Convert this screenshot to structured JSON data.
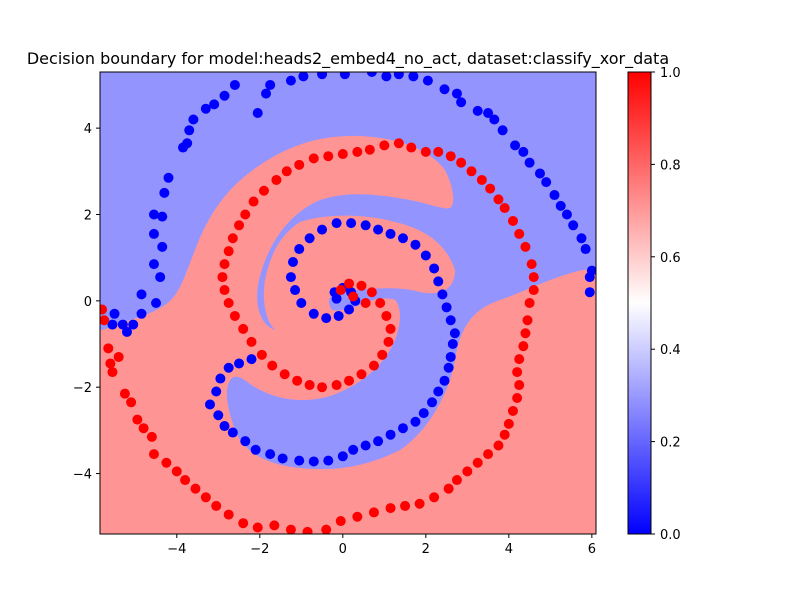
{
  "chart_data": {
    "type": "scatter",
    "title": "Decision boundary for model:heads2_embed4_no_act, dataset:classify_xor_data",
    "xlabel": "",
    "ylabel": "",
    "xlim": [
      -5.85,
      6.1
    ],
    "ylim": [
      -5.4,
      5.3
    ],
    "x_ticks": [
      -4,
      -2,
      0,
      2,
      4,
      6
    ],
    "y_ticks": [
      -4,
      -2,
      0,
      2,
      4
    ],
    "x_tick_labels": [
      "−4",
      "−2",
      "0",
      "2",
      "4",
      "6"
    ],
    "y_tick_labels": [
      "−4",
      "−2",
      "0",
      "2",
      "4"
    ],
    "colorbar": {
      "min": 0.0,
      "max": 1.0,
      "ticks": [
        0.0,
        0.2,
        0.4,
        0.6,
        0.8,
        1.0
      ],
      "tick_labels": [
        "0.0",
        "0.2",
        "0.4",
        "0.6",
        "0.8",
        "1.0"
      ],
      "colormap": "bwr"
    },
    "region_colors": {
      "class0": "#9494ff",
      "class1": "#ff9494"
    },
    "series": [
      {
        "color": "#0000ff",
        "points": [
          [
            -5.55,
            -0.55
          ],
          [
            -5.5,
            -0.3
          ],
          [
            -5.3,
            -0.55
          ],
          [
            -5.2,
            -0.72
          ],
          [
            -5.05,
            -0.55
          ],
          [
            -4.85,
            -0.3
          ],
          [
            -4.5,
            -0.05
          ],
          [
            -4.85,
            0.15
          ],
          [
            -4.4,
            0.55
          ],
          [
            -4.55,
            0.85
          ],
          [
            -4.35,
            1.25
          ],
          [
            -4.55,
            1.55
          ],
          [
            -4.35,
            1.95
          ],
          [
            -4.55,
            2.0
          ],
          [
            -4.3,
            2.5
          ],
          [
            -4.2,
            2.85
          ],
          [
            -3.85,
            3.55
          ],
          [
            -3.75,
            3.65
          ],
          [
            -3.7,
            3.95
          ],
          [
            -3.6,
            4.2
          ],
          [
            -3.3,
            4.45
          ],
          [
            -3.1,
            4.55
          ],
          [
            -2.85,
            4.75
          ],
          [
            -2.6,
            5.0
          ],
          [
            -2.05,
            4.35
          ],
          [
            -1.85,
            4.8
          ],
          [
            -1.75,
            5.0
          ],
          [
            -1.25,
            5.1
          ],
          [
            -0.95,
            5.2
          ],
          [
            -0.5,
            5.25
          ],
          [
            0.05,
            5.25
          ],
          [
            0.7,
            5.3
          ],
          [
            1.05,
            5.2
          ],
          [
            1.35,
            5.25
          ],
          [
            1.7,
            5.2
          ],
          [
            2.05,
            5.1
          ],
          [
            2.45,
            4.9
          ],
          [
            2.75,
            4.8
          ],
          [
            2.85,
            4.6
          ],
          [
            3.25,
            4.4
          ],
          [
            3.5,
            4.35
          ],
          [
            3.65,
            4.2
          ],
          [
            3.85,
            3.95
          ],
          [
            4.15,
            3.6
          ],
          [
            4.35,
            3.45
          ],
          [
            4.5,
            3.2
          ],
          [
            4.75,
            2.95
          ],
          [
            4.9,
            2.75
          ],
          [
            5.1,
            2.45
          ],
          [
            5.25,
            2.2
          ],
          [
            5.4,
            2.0
          ],
          [
            5.55,
            1.75
          ],
          [
            5.75,
            1.45
          ],
          [
            5.85,
            1.2
          ],
          [
            6.0,
            0.7
          ],
          [
            5.95,
            0.55
          ],
          [
            5.95,
            0.2
          ],
          [
            -2.2,
            -1.35
          ],
          [
            -2.5,
            -1.45
          ],
          [
            -2.75,
            -1.55
          ],
          [
            -2.95,
            -1.8
          ],
          [
            -3.05,
            -2.1
          ],
          [
            -3.2,
            -2.4
          ],
          [
            -3.0,
            -2.65
          ],
          [
            -2.85,
            -2.9
          ],
          [
            -2.65,
            -3.05
          ],
          [
            -2.35,
            -3.25
          ],
          [
            -2.1,
            -3.45
          ],
          [
            -1.75,
            -3.55
          ],
          [
            -1.45,
            -3.65
          ],
          [
            -1.05,
            -3.7
          ],
          [
            -0.7,
            -3.72
          ],
          [
            -0.35,
            -3.7
          ],
          [
            0.0,
            -3.6
          ],
          [
            0.25,
            -3.45
          ],
          [
            0.55,
            -3.35
          ],
          [
            0.85,
            -3.25
          ],
          [
            1.15,
            -3.1
          ],
          [
            1.45,
            -2.95
          ],
          [
            1.75,
            -2.8
          ],
          [
            1.95,
            -2.6
          ],
          [
            2.15,
            -2.35
          ],
          [
            2.3,
            -2.1
          ],
          [
            2.45,
            -1.85
          ],
          [
            2.55,
            -1.55
          ],
          [
            2.6,
            -1.3
          ],
          [
            2.65,
            -1.0
          ],
          [
            2.7,
            -0.75
          ],
          [
            2.6,
            -0.45
          ],
          [
            2.5,
            -0.15
          ],
          [
            2.4,
            0.15
          ],
          [
            2.3,
            0.45
          ],
          [
            2.2,
            0.75
          ],
          [
            2.0,
            1.05
          ],
          [
            1.75,
            1.3
          ],
          [
            1.45,
            1.45
          ],
          [
            1.15,
            1.55
          ],
          [
            0.85,
            1.65
          ],
          [
            0.55,
            1.75
          ],
          [
            0.2,
            1.8
          ],
          [
            -0.15,
            1.8
          ],
          [
            -0.5,
            1.65
          ],
          [
            -0.8,
            1.45
          ],
          [
            -1.05,
            1.2
          ],
          [
            -1.2,
            0.9
          ],
          [
            -1.25,
            0.55
          ],
          [
            -1.15,
            0.25
          ],
          [
            -1.0,
            -0.05
          ],
          [
            -0.7,
            -0.3
          ],
          [
            -0.4,
            -0.4
          ],
          [
            -0.1,
            -0.35
          ],
          [
            0.15,
            -0.2
          ],
          [
            0.3,
            0.0
          ],
          [
            0.2,
            0.2
          ],
          [
            0.0,
            0.3
          ],
          [
            -0.2,
            0.2
          ],
          [
            -0.15,
            0.05
          ]
        ]
      },
      {
        "color": "#ff0000",
        "points": [
          [
            -5.8,
            -0.2
          ],
          [
            -5.75,
            -0.45
          ],
          [
            -5.65,
            -1.1
          ],
          [
            -5.6,
            -1.45
          ],
          [
            -5.55,
            -1.65
          ],
          [
            -5.4,
            -1.3
          ],
          [
            -5.25,
            -2.15
          ],
          [
            -5.1,
            -2.35
          ],
          [
            -4.95,
            -2.75
          ],
          [
            -4.8,
            -2.95
          ],
          [
            -4.6,
            -3.15
          ],
          [
            -4.55,
            -3.55
          ],
          [
            -4.25,
            -3.75
          ],
          [
            -4.0,
            -3.95
          ],
          [
            -3.8,
            -4.15
          ],
          [
            -3.55,
            -4.35
          ],
          [
            -3.3,
            -4.55
          ],
          [
            -3.05,
            -4.75
          ],
          [
            -2.75,
            -4.95
          ],
          [
            -2.4,
            -5.15
          ],
          [
            -2.05,
            -5.25
          ],
          [
            -1.65,
            -5.2
          ],
          [
            -1.25,
            -5.3
          ],
          [
            -0.85,
            -5.35
          ],
          [
            -0.4,
            -5.3
          ],
          [
            -0.05,
            -5.1
          ],
          [
            0.35,
            -5.0
          ],
          [
            0.75,
            -4.9
          ],
          [
            1.15,
            -4.8
          ],
          [
            1.5,
            -4.75
          ],
          [
            1.85,
            -4.7
          ],
          [
            2.2,
            -4.55
          ],
          [
            2.55,
            -4.35
          ],
          [
            2.75,
            -4.15
          ],
          [
            3.0,
            -3.95
          ],
          [
            3.25,
            -3.75
          ],
          [
            3.5,
            -3.55
          ],
          [
            3.75,
            -3.35
          ],
          [
            3.9,
            -3.1
          ],
          [
            4.0,
            -2.85
          ],
          [
            4.1,
            -2.55
          ],
          [
            4.2,
            -2.25
          ],
          [
            4.25,
            -1.95
          ],
          [
            4.2,
            -1.65
          ],
          [
            4.25,
            -1.35
          ],
          [
            4.35,
            -1.05
          ],
          [
            4.4,
            -0.75
          ],
          [
            4.45,
            -0.45
          ],
          [
            4.5,
            -0.05
          ],
          [
            4.6,
            0.25
          ],
          [
            4.6,
            0.55
          ],
          [
            4.55,
            0.85
          ],
          [
            4.4,
            1.25
          ],
          [
            4.25,
            1.55
          ],
          [
            4.1,
            1.85
          ],
          [
            3.9,
            2.15
          ],
          [
            3.75,
            2.35
          ],
          [
            3.55,
            2.6
          ],
          [
            3.35,
            2.8
          ],
          [
            3.1,
            3.0
          ],
          [
            2.85,
            3.2
          ],
          [
            2.6,
            3.35
          ],
          [
            2.3,
            3.45
          ],
          [
            2.0,
            3.45
          ],
          [
            1.65,
            3.55
          ],
          [
            1.35,
            3.65
          ],
          [
            1.0,
            3.6
          ],
          [
            0.65,
            3.5
          ],
          [
            0.35,
            3.45
          ],
          [
            0.0,
            3.4
          ],
          [
            -0.35,
            3.35
          ],
          [
            -0.7,
            3.3
          ],
          [
            -1.05,
            3.15
          ],
          [
            -1.35,
            3.0
          ],
          [
            -1.6,
            2.8
          ],
          [
            -1.9,
            2.55
          ],
          [
            -2.15,
            2.3
          ],
          [
            -2.35,
            2.0
          ],
          [
            -2.5,
            1.75
          ],
          [
            -2.65,
            1.45
          ],
          [
            -2.75,
            1.15
          ],
          [
            -2.85,
            0.85
          ],
          [
            -2.9,
            0.55
          ],
          [
            -2.85,
            0.25
          ],
          [
            -2.75,
            -0.05
          ],
          [
            -2.6,
            -0.35
          ],
          [
            -2.4,
            -0.65
          ],
          [
            -2.2,
            -0.95
          ],
          [
            -1.95,
            -1.25
          ],
          [
            -1.7,
            -1.5
          ],
          [
            -1.4,
            -1.7
          ],
          [
            -1.1,
            -1.85
          ],
          [
            -0.8,
            -1.95
          ],
          [
            -0.5,
            -2.0
          ],
          [
            -0.15,
            -1.95
          ],
          [
            0.15,
            -1.85
          ],
          [
            0.45,
            -1.7
          ],
          [
            0.75,
            -1.5
          ],
          [
            0.95,
            -1.25
          ],
          [
            1.1,
            -0.95
          ],
          [
            1.15,
            -0.65
          ],
          [
            1.05,
            -0.35
          ],
          [
            0.9,
            -0.05
          ],
          [
            0.7,
            0.2
          ],
          [
            0.45,
            0.35
          ],
          [
            0.15,
            0.4
          ],
          [
            -0.05,
            0.25
          ],
          [
            0.25,
            0.1
          ],
          [
            0.55,
            -0.05
          ]
        ]
      }
    ]
  }
}
